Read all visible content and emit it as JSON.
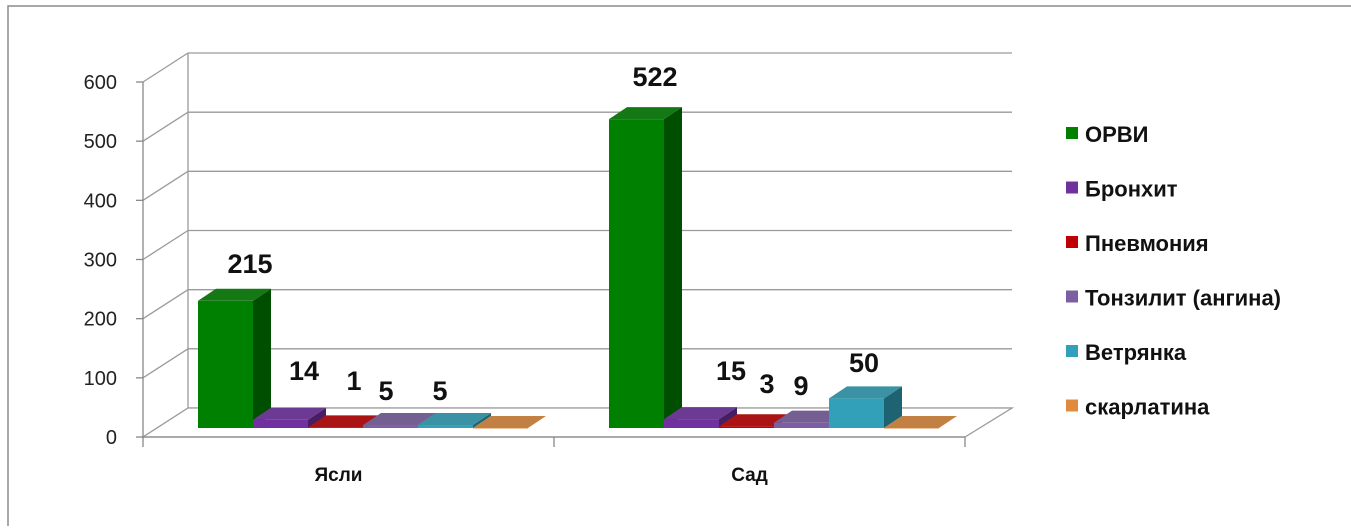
{
  "chart_data": {
    "type": "bar",
    "style": "3d-clustered-column",
    "categories": [
      "Ясли",
      "Сад"
    ],
    "series": [
      {
        "name": "ОРВИ",
        "values": [
          215,
          522
        ],
        "labels": [
          "215",
          "522"
        ],
        "color": "#008000"
      },
      {
        "name": "Бронхит",
        "values": [
          14,
          15
        ],
        "labels": [
          "14",
          "15"
        ],
        "color": "#7030A0"
      },
      {
        "name": "Пневмония",
        "values": [
          1,
          3
        ],
        "labels": [
          "1",
          "3"
        ],
        "color": "#C00000"
      },
      {
        "name": "Тонзилит (ангина)",
        "values": [
          5,
          9
        ],
        "labels": [
          "5",
          "9"
        ],
        "color": "#7B5FA0"
      },
      {
        "name": "Ветрянка",
        "values": [
          5,
          50
        ],
        "labels": [
          "5",
          "50"
        ],
        "color": "#31A0B8"
      },
      {
        "name": "скарлатина",
        "values": [
          0,
          0
        ],
        "labels": [
          "",
          ""
        ],
        "color": "#E08A3C"
      }
    ],
    "yticks": [
      "0",
      "100",
      "200",
      "300",
      "400",
      "500",
      "600"
    ],
    "ylim": [
      0,
      600
    ],
    "grid": true,
    "legend": "right"
  }
}
